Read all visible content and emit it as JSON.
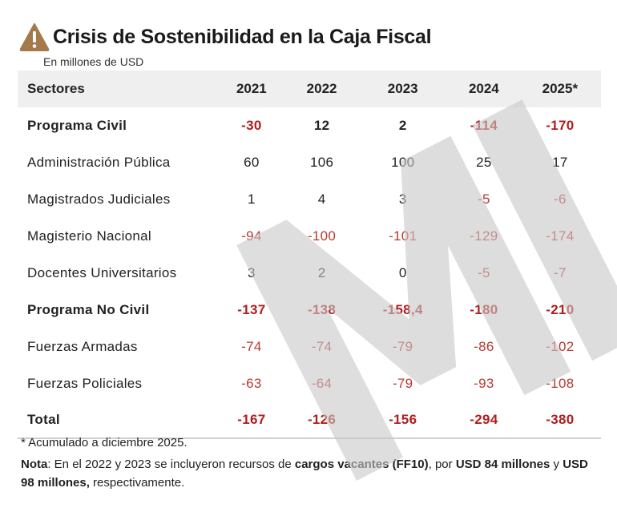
{
  "header": {
    "icon": "warning-triangle-icon",
    "icon_color": "#a47a4c",
    "title": "Crisis de Sostenibilidad en la Caja Fiscal",
    "subtitle": "En millones de USD"
  },
  "table": {
    "columns": [
      "Sectores",
      "2021",
      "2022",
      "2023",
      "2024",
      "2025*"
    ],
    "rows": [
      {
        "label": "Programa Civil",
        "bold": true,
        "values": [
          "-30",
          "12",
          "2",
          "-114",
          "-170"
        ]
      },
      {
        "label": "Administración Pública",
        "bold": false,
        "values": [
          "60",
          "106",
          "100",
          "25",
          "17"
        ]
      },
      {
        "label": "Magistrados Judiciales",
        "bold": false,
        "values": [
          "1",
          "4",
          "3",
          "-5",
          "-6"
        ]
      },
      {
        "label": "Magisterio Nacional",
        "bold": false,
        "values": [
          "-94",
          "-100",
          "-101",
          "-129",
          "-174"
        ]
      },
      {
        "label": "Docentes Universitarios",
        "bold": false,
        "values": [
          "3",
          "2",
          "0",
          "-5",
          "-7"
        ]
      },
      {
        "label": "Programa No Civil",
        "bold": true,
        "values": [
          "-137",
          "-138",
          "-158,4",
          "-180",
          "-210"
        ]
      },
      {
        "label": "Fuerzas Armadas",
        "bold": false,
        "values": [
          "-74",
          "-74",
          "-79",
          "-86",
          "-102"
        ]
      },
      {
        "label": "Fuerzas Policiales",
        "bold": false,
        "values": [
          "-63",
          "-64",
          "-79",
          "-93",
          "-108"
        ]
      },
      {
        "label": "Total",
        "bold": true,
        "values": [
          "-167",
          "-126",
          "-156",
          "-294",
          "-380"
        ]
      }
    ],
    "negative_color": "#b01e1e"
  },
  "footnote": "* Acumulado a diciembre 2025.",
  "note": {
    "label": "Nota",
    "parts": [
      {
        "text": ": En el 2022 y 2023 se incluyeron recursos de ",
        "bold": false
      },
      {
        "text": "cargos vacantes (FF10)",
        "bold": true
      },
      {
        "text": ", por ",
        "bold": false
      },
      {
        "text": "USD 84 millones",
        "bold": true
      },
      {
        "text": " y ",
        "bold": false
      },
      {
        "text": "USD 98 millones,",
        "bold": true
      },
      {
        "text": " respectivamente.",
        "bold": false
      }
    ]
  },
  "watermark": {
    "text": "MI",
    "color": "#c8c8c8"
  }
}
